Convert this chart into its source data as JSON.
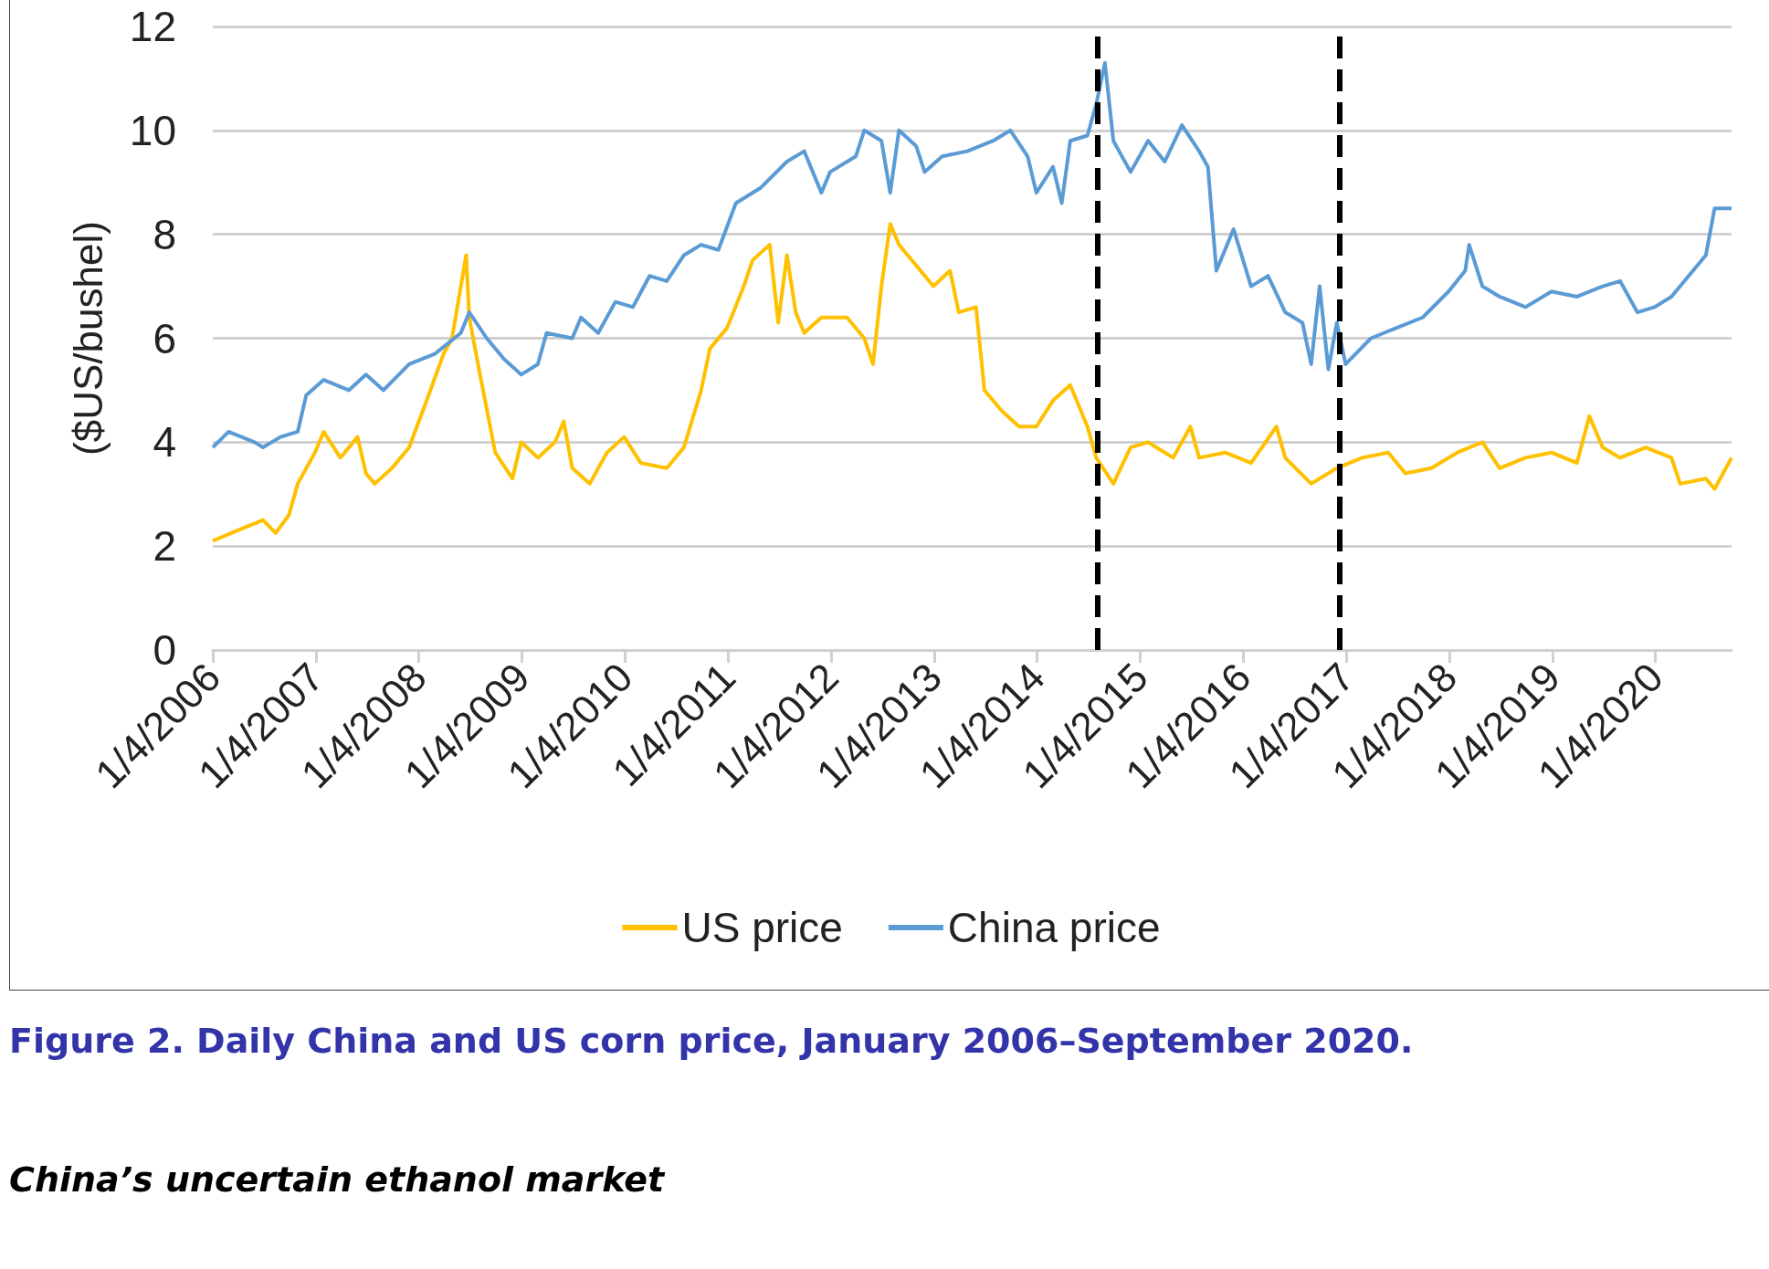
{
  "chart_data": {
    "type": "line",
    "ylabel": "($US/bushel)",
    "annotations": [
      "Figure 2. Daily China and US corn price, January 2006–September 2020.",
      "China’s uncertain ethanol market"
    ],
    "xlim": [
      "2006-01-04",
      "2020-09-30"
    ],
    "xticks": [
      {
        "value": "2006-01-04",
        "label": "1/4/2006"
      },
      {
        "value": "2007-01-04",
        "label": "1/4/2007"
      },
      {
        "value": "2008-01-04",
        "label": "1/4/2008"
      },
      {
        "value": "2009-01-04",
        "label": "1/4/2009"
      },
      {
        "value": "2010-01-04",
        "label": "1/4/2010"
      },
      {
        "value": "2011-01-04",
        "label": "1/4/2011"
      },
      {
        "value": "2012-01-04",
        "label": "1/4/2012"
      },
      {
        "value": "2013-01-04",
        "label": "1/4/2013"
      },
      {
        "value": "2014-01-04",
        "label": "1/4/2014"
      },
      {
        "value": "2015-01-04",
        "label": "1/4/2015"
      },
      {
        "value": "2016-01-04",
        "label": "1/4/2016"
      },
      {
        "value": "2017-01-04",
        "label": "1/4/2017"
      },
      {
        "value": "2018-01-04",
        "label": "1/4/2018"
      },
      {
        "value": "2019-01-04",
        "label": "1/4/2019"
      },
      {
        "value": "2020-01-04",
        "label": "1/4/2020"
      }
    ],
    "ylim": [
      0,
      12
    ],
    "yticks": [
      0,
      2,
      4,
      6,
      8,
      10,
      12
    ],
    "grid": "y",
    "legend": "bottom",
    "marker": "none",
    "line_style": "solid",
    "ref_lines": [
      {
        "axis": "x",
        "value": "2014-08-05",
        "label": null,
        "color": "#000000",
        "line_style": "dashed"
      },
      {
        "axis": "x",
        "value": "2016-12-10",
        "label": null,
        "color": "#000000",
        "line_style": "dashed"
      }
    ],
    "series": [
      {
        "name": "US price",
        "color": "#ffc000",
        "x": [
          "2006-01-04",
          "2006-04-01",
          "2006-07-01",
          "2006-08-15",
          "2006-10-01",
          "2006-11-01",
          "2007-01-01",
          "2007-02-01",
          "2007-04-01",
          "2007-06-01",
          "2007-07-01",
          "2007-08-01",
          "2007-10-01",
          "2007-12-01",
          "2008-02-01",
          "2008-04-01",
          "2008-05-01",
          "2008-06-20",
          "2008-07-01",
          "2008-08-01",
          "2008-10-01",
          "2008-12-01",
          "2009-01-01",
          "2009-03-01",
          "2009-05-01",
          "2009-06-01",
          "2009-07-01",
          "2009-09-01",
          "2009-11-01",
          "2010-01-01",
          "2010-03-01",
          "2010-06-01",
          "2010-08-01",
          "2010-10-01",
          "2010-11-01",
          "2011-01-01",
          "2011-03-01",
          "2011-04-01",
          "2011-06-01",
          "2011-07-01",
          "2011-08-01",
          "2011-09-01",
          "2011-10-01",
          "2011-12-01",
          "2012-03-01",
          "2012-05-01",
          "2012-06-01",
          "2012-07-01",
          "2012-08-01",
          "2012-09-01",
          "2012-11-01",
          "2013-01-01",
          "2013-03-01",
          "2013-04-01",
          "2013-06-01",
          "2013-07-01",
          "2013-09-01",
          "2013-11-01",
          "2014-01-01",
          "2014-03-01",
          "2014-05-01",
          "2014-07-01",
          "2014-08-01",
          "2014-10-01",
          "2014-12-01",
          "2015-02-01",
          "2015-05-01",
          "2015-07-01",
          "2015-08-01",
          "2015-11-01",
          "2016-02-01",
          "2016-05-01",
          "2016-06-01",
          "2016-09-01",
          "2016-12-01",
          "2017-03-01",
          "2017-06-01",
          "2017-08-01",
          "2017-11-01",
          "2018-02-01",
          "2018-05-01",
          "2018-07-01",
          "2018-10-01",
          "2019-01-01",
          "2019-04-01",
          "2019-05-15",
          "2019-07-01",
          "2019-09-01",
          "2019-12-01",
          "2020-03-01",
          "2020-04-01",
          "2020-07-01",
          "2020-08-01",
          "2020-09-30"
        ],
        "values": [
          2.1,
          2.3,
          2.5,
          2.25,
          2.6,
          3.2,
          3.8,
          4.2,
          3.7,
          4.1,
          3.4,
          3.2,
          3.5,
          3.9,
          4.8,
          5.7,
          6.0,
          7.6,
          6.4,
          5.5,
          3.8,
          3.3,
          4.0,
          3.7,
          4.0,
          4.4,
          3.5,
          3.2,
          3.8,
          4.1,
          3.6,
          3.5,
          3.9,
          5.0,
          5.8,
          6.2,
          7.0,
          7.5,
          7.8,
          6.3,
          7.6,
          6.5,
          6.1,
          6.4,
          6.4,
          6.0,
          5.5,
          7.0,
          8.2,
          7.8,
          7.4,
          7.0,
          7.3,
          6.5,
          6.6,
          5.0,
          4.6,
          4.3,
          4.3,
          4.8,
          5.1,
          4.3,
          3.7,
          3.2,
          3.9,
          4.0,
          3.7,
          4.3,
          3.7,
          3.8,
          3.6,
          4.3,
          3.7,
          3.2,
          3.5,
          3.7,
          3.8,
          3.4,
          3.5,
          3.8,
          4.0,
          3.5,
          3.7,
          3.8,
          3.6,
          4.5,
          3.9,
          3.7,
          3.9,
          3.7,
          3.2,
          3.3,
          3.1,
          3.7
        ]
      },
      {
        "name": "China price",
        "color": "#5b9bd5",
        "x": [
          "2006-01-04",
          "2006-03-01",
          "2006-06-01",
          "2006-07-01",
          "2006-09-01",
          "2006-11-01",
          "2006-12-01",
          "2007-02-01",
          "2007-05-01",
          "2007-07-01",
          "2007-09-01",
          "2007-12-01",
          "2008-03-01",
          "2008-06-01",
          "2008-07-01",
          "2008-09-01",
          "2008-11-01",
          "2009-01-01",
          "2009-03-01",
          "2009-04-01",
          "2009-07-01",
          "2009-08-01",
          "2009-10-01",
          "2009-12-01",
          "2010-02-01",
          "2010-04-01",
          "2010-06-01",
          "2010-08-01",
          "2010-10-01",
          "2010-12-01",
          "2011-02-01",
          "2011-05-01",
          "2011-08-01",
          "2011-10-01",
          "2011-12-01",
          "2012-01-01",
          "2012-04-01",
          "2012-05-01",
          "2012-07-01",
          "2012-08-01",
          "2012-09-01",
          "2012-11-01",
          "2012-12-01",
          "2013-02-01",
          "2013-05-01",
          "2013-08-01",
          "2013-10-01",
          "2013-12-01",
          "2014-01-01",
          "2014-03-01",
          "2014-04-01",
          "2014-05-01",
          "2014-07-01",
          "2014-08-01",
          "2014-09-01",
          "2014-10-01",
          "2014-12-01",
          "2015-02-01",
          "2015-04-01",
          "2015-06-01",
          "2015-08-01",
          "2015-09-01",
          "2015-10-01",
          "2015-12-01",
          "2016-02-01",
          "2016-04-01",
          "2016-06-01",
          "2016-08-01",
          "2016-09-01",
          "2016-10-01",
          "2016-11-01",
          "2016-12-01",
          "2017-01-01",
          "2017-04-01",
          "2017-07-01",
          "2017-10-01",
          "2018-01-01",
          "2018-03-01",
          "2018-03-15",
          "2018-05-01",
          "2018-07-01",
          "2018-10-01",
          "2019-01-01",
          "2019-04-01",
          "2019-07-01",
          "2019-09-01",
          "2019-11-01",
          "2020-01-01",
          "2020-03-01",
          "2020-05-01",
          "2020-07-01",
          "2020-08-01",
          "2020-09-30"
        ],
        "values": [
          3.9,
          4.2,
          4.0,
          3.9,
          4.1,
          4.2,
          4.9,
          5.2,
          5.0,
          5.3,
          5.0,
          5.5,
          5.7,
          6.1,
          6.5,
          6.0,
          5.6,
          5.3,
          5.5,
          6.1,
          6.0,
          6.4,
          6.1,
          6.7,
          6.6,
          7.2,
          7.1,
          7.6,
          7.8,
          7.7,
          8.6,
          8.9,
          9.4,
          9.6,
          8.8,
          9.2,
          9.5,
          10.0,
          9.8,
          8.8,
          10.0,
          9.7,
          9.2,
          9.5,
          9.6,
          9.8,
          10.0,
          9.5,
          8.8,
          9.3,
          8.6,
          9.8,
          9.9,
          10.5,
          11.3,
          9.8,
          9.2,
          9.8,
          9.4,
          10.1,
          9.6,
          9.3,
          7.3,
          8.1,
          7.0,
          7.2,
          6.5,
          6.3,
          5.5,
          7.0,
          5.4,
          6.3,
          5.5,
          6.0,
          6.2,
          6.4,
          6.9,
          7.3,
          7.8,
          7.0,
          6.8,
          6.6,
          6.9,
          6.8,
          7.0,
          7.1,
          6.5,
          6.6,
          6.8,
          7.2,
          7.6,
          8.5,
          8.5
        ]
      }
    ]
  }
}
